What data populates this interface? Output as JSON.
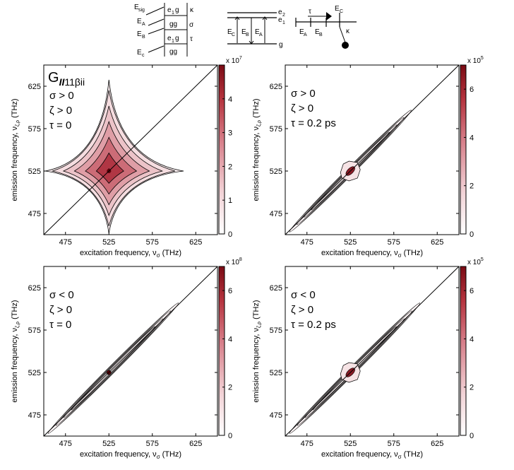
{
  "diagrams": {
    "levels": {
      "labels": [
        "E",
        "sig",
        "E",
        "A",
        "E",
        "B",
        "E",
        "c",
        "e",
        "1",
        "g",
        "gg",
        "e",
        "1",
        "g",
        "gg",
        "κ",
        "σ",
        "τ"
      ]
    },
    "energy": {
      "labels": [
        "e",
        "2",
        "e",
        "1",
        "g",
        "E",
        "C",
        "E",
        "B",
        "E",
        "A"
      ]
    },
    "timing": {
      "labels": [
        "τ",
        "E",
        "C",
        "E",
        "A",
        "E",
        "B",
        "κ"
      ]
    }
  },
  "panels": [
    {
      "id": "top-left",
      "title": {
        "main": "G",
        "sub1": "II",
        "sub2": "11βii"
      },
      "annotation": [
        "σ > 0",
        "ζ > 0",
        "τ = 0"
      ],
      "xlabel": {
        "main": "excitation frequency, ν",
        "sub": "σ",
        "unit": " (THz)"
      },
      "ylabel": {
        "main": "emission frequency, ν",
        "sub": "ζ,ρ",
        "unit": " (THz)"
      },
      "xticks": [
        "475",
        "525",
        "575",
        "625"
      ],
      "yticks": [
        "475",
        "525",
        "575",
        "625"
      ],
      "colorbar": {
        "exponent_base": "x 10",
        "exponent": "7",
        "ticks": [
          "0",
          "1",
          "2",
          "3",
          "4"
        ]
      }
    },
    {
      "id": "top-right",
      "annotation": [
        "σ > 0",
        "ζ > 0",
        "τ = 0.2 ps"
      ],
      "xlabel": {
        "main": "excitation frequency, ν",
        "sub": "σ",
        "unit": " (THz)"
      },
      "ylabel": {
        "main": "emission frequency, ν",
        "sub": "ζ,ρ",
        "unit": " (THz)"
      },
      "xticks": [
        "475",
        "525",
        "575",
        "625"
      ],
      "yticks": [
        "475",
        "525",
        "575",
        "625"
      ],
      "colorbar": {
        "exponent_base": "x 10",
        "exponent": "5",
        "ticks": [
          "0",
          "2",
          "4",
          "6"
        ]
      }
    },
    {
      "id": "bottom-left",
      "annotation": [
        "σ < 0",
        "ζ > 0",
        "τ = 0"
      ],
      "xlabel": {
        "main": "excitation frequency, ν",
        "sub": "σ",
        "unit": " (THz)"
      },
      "ylabel": {
        "main": "emission frequency, ν",
        "sub": "ζ,ρ",
        "unit": " (THz)"
      },
      "xticks": [
        "475",
        "525",
        "575",
        "625"
      ],
      "yticks": [
        "475",
        "525",
        "575",
        "625"
      ],
      "colorbar": {
        "exponent_base": "x 10",
        "exponent": "8",
        "ticks": [
          "0",
          "2",
          "4",
          "6"
        ]
      }
    },
    {
      "id": "bottom-right",
      "annotation": [
        "σ < 0",
        "ζ > 0",
        "τ = 0.2 ps"
      ],
      "xlabel": {
        "main": "excitation frequency, ν",
        "sub": "σ",
        "unit": " (THz)"
      },
      "ylabel": {
        "main": "emission frequency, ν",
        "sub": "ζ,ρ",
        "unit": " (THz)"
      },
      "xticks": [
        "475",
        "525",
        "575",
        "625"
      ],
      "yticks": [
        "475",
        "525",
        "575",
        "625"
      ],
      "colorbar": {
        "exponent_base": "x 10",
        "exponent": "5",
        "ticks": [
          "0",
          "2",
          "4",
          "6"
        ]
      }
    }
  ],
  "chart_data": [
    {
      "type": "heatmap",
      "xlim": [
        450,
        650
      ],
      "ylim": [
        450,
        650
      ],
      "diagonal": true,
      "peak_center": [
        525,
        525
      ],
      "shape": "cross",
      "colorbar_range": [
        0,
        50000000.0
      ],
      "contour_fractions": [
        0.02,
        0.12,
        0.27,
        0.42,
        0.57,
        0.72,
        0.87
      ],
      "arm_extent": {
        "x": [
          450,
          613
        ],
        "y": [
          450,
          635
        ]
      },
      "colormap": [
        "#ffffff",
        "#f2d2d6",
        "#d77f8a",
        "#b5333e",
        "#7a0b14"
      ]
    },
    {
      "type": "heatmap",
      "xlim": [
        450,
        650
      ],
      "ylim": [
        450,
        650
      ],
      "diagonal": true,
      "peak_center": [
        525,
        525
      ],
      "shape": "diagonal-ridge",
      "colorbar_range": [
        0,
        700000.0
      ],
      "ridge_extent": [
        455,
        595
      ],
      "colormap": [
        "#ffffff",
        "#f2d2d6",
        "#d77f8a",
        "#b5333e",
        "#7a0b14"
      ]
    },
    {
      "type": "heatmap",
      "xlim": [
        450,
        650
      ],
      "ylim": [
        450,
        650
      ],
      "diagonal": true,
      "peak_center": [
        525,
        525
      ],
      "shape": "diagonal-ridge",
      "colorbar_range": [
        0,
        700000000.0
      ],
      "ridge_extent": [
        455,
        605
      ],
      "colormap": [
        "#ffffff",
        "#f2d2d6",
        "#d77f8a",
        "#b5333e",
        "#7a0b14"
      ]
    },
    {
      "type": "heatmap",
      "xlim": [
        450,
        650
      ],
      "ylim": [
        450,
        650
      ],
      "diagonal": true,
      "peak_center": [
        525,
        525
      ],
      "shape": "diagonal-ridge",
      "colorbar_range": [
        0,
        700000.0
      ],
      "ridge_extent": [
        455,
        605
      ],
      "colormap": [
        "#ffffff",
        "#f2d2d6",
        "#d77f8a",
        "#b5333e",
        "#7a0b14"
      ]
    }
  ]
}
